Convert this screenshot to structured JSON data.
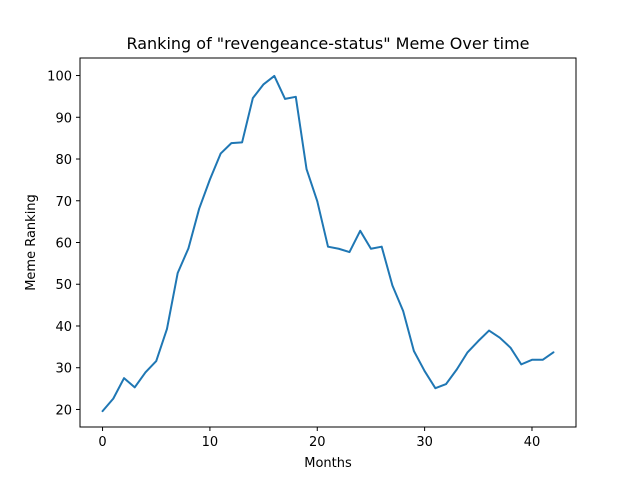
{
  "chart_data": {
    "type": "line",
    "title": "Ranking of \"revengeance-status\" Meme Over time",
    "xlabel": "Months",
    "ylabel": "Meme Ranking",
    "xlim": [
      -2.1,
      44.1
    ],
    "ylim": [
      15.8,
      104.2
    ],
    "xticks": [
      0,
      10,
      20,
      30,
      40
    ],
    "yticks": [
      20,
      30,
      40,
      50,
      60,
      70,
      80,
      90,
      100
    ],
    "grid": false,
    "line_color": "#1f77b4",
    "series": [
      {
        "x": [
          0,
          1,
          2,
          3,
          4,
          5,
          6,
          7,
          8,
          9,
          10,
          11,
          12,
          13,
          14,
          15,
          16,
          17,
          18,
          19,
          20,
          21,
          22,
          23,
          24,
          25,
          26,
          27,
          28,
          29,
          30,
          31,
          32,
          33,
          34,
          35,
          36,
          37,
          38,
          39,
          40,
          41,
          42
        ],
        "values": [
          19.6,
          22.6,
          27.5,
          25.3,
          28.9,
          31.6,
          39.3,
          52.7,
          58.6,
          68.1,
          75.1,
          81.3,
          83.8,
          84.0,
          94.6,
          97.9,
          99.9,
          94.4,
          94.9,
          77.6,
          69.9,
          59.0,
          58.5,
          57.7,
          62.8,
          58.5,
          59.0,
          49.7,
          43.6,
          34.0,
          29.2,
          25.1,
          26.1,
          29.6,
          33.7,
          36.4,
          38.9,
          37.2,
          34.8,
          30.8,
          31.9,
          31.9,
          33.7
        ]
      }
    ]
  }
}
